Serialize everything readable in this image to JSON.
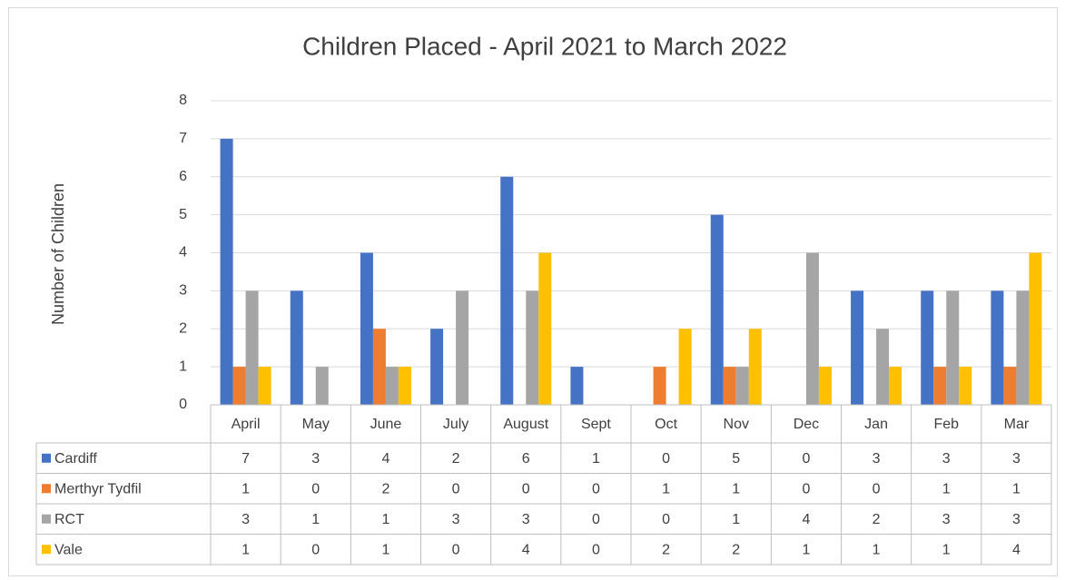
{
  "chart_data": {
    "type": "bar",
    "title": "Children Placed - April 2021 to March 2022",
    "y_label": "Number of Children",
    "categories": [
      "April",
      "May",
      "June",
      "July",
      "August",
      "Sept",
      "Oct",
      "Nov",
      "Dec",
      "Jan",
      "Feb",
      "Mar"
    ],
    "series": [
      {
        "name": "Cardiff",
        "color": "#4472c4",
        "values": [
          7,
          3,
          4,
          2,
          6,
          1,
          0,
          5,
          0,
          3,
          3,
          3
        ]
      },
      {
        "name": "Merthyr Tydfil",
        "color": "#ed7d31",
        "values": [
          1,
          0,
          2,
          0,
          0,
          0,
          1,
          1,
          0,
          0,
          1,
          1
        ]
      },
      {
        "name": "RCT",
        "color": "#a5a5a5",
        "values": [
          3,
          1,
          1,
          3,
          3,
          0,
          0,
          1,
          4,
          2,
          3,
          3
        ]
      },
      {
        "name": "Vale",
        "color": "#ffc000",
        "values": [
          1,
          0,
          1,
          0,
          4,
          0,
          2,
          2,
          1,
          1,
          1,
          4
        ]
      }
    ],
    "ylim": [
      0,
      8
    ],
    "yticks": [
      0,
      1,
      2,
      3,
      4,
      5,
      6,
      7,
      8
    ],
    "grid": true,
    "data_table": true
  }
}
